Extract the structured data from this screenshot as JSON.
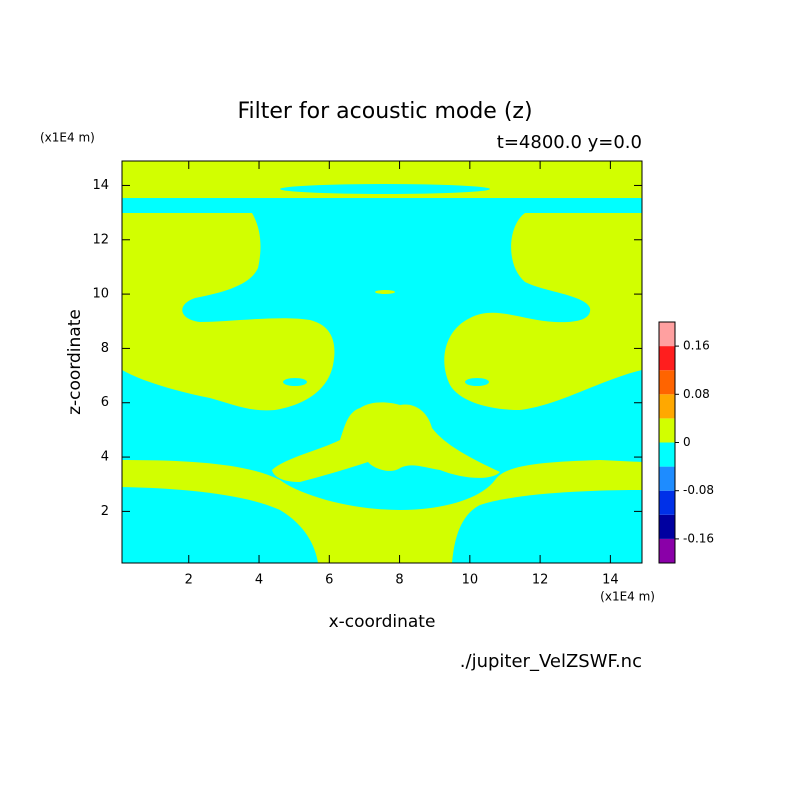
{
  "chart_data": {
    "type": "contour",
    "title": "Filter for acoustic mode (z)",
    "subtitle": "t=4800.0 y=0.0",
    "x_label": "x-coordinate",
    "y_label": "z-coordinate",
    "x_unit": "(x1E4 m)",
    "y_unit": "(x1E4 m)",
    "source": "./jupiter_VelZSWF.nc",
    "xlim": [
      0.1,
      14.9
    ],
    "ylim": [
      0.1,
      14.9
    ],
    "xticks": [
      2,
      4,
      6,
      8,
      10,
      12,
      14
    ],
    "yticks": [
      2,
      4,
      6,
      8,
      10,
      12,
      14
    ],
    "colorbar": {
      "levels": [
        -0.2,
        -0.16,
        -0.12,
        -0.08,
        -0.04,
        0,
        0.04,
        0.08,
        0.12,
        0.16,
        0.2
      ],
      "colors": [
        "#8a00a8",
        "#0000a0",
        "#0030e8",
        "#1e8cff",
        "#00ffff",
        "#d2ff00",
        "#ffa800",
        "#ff6400",
        "#ff1e1e",
        "#ffa0a0"
      ],
      "ticks": [
        -0.16,
        -0.08,
        0,
        0.08,
        0.16
      ]
    }
  }
}
